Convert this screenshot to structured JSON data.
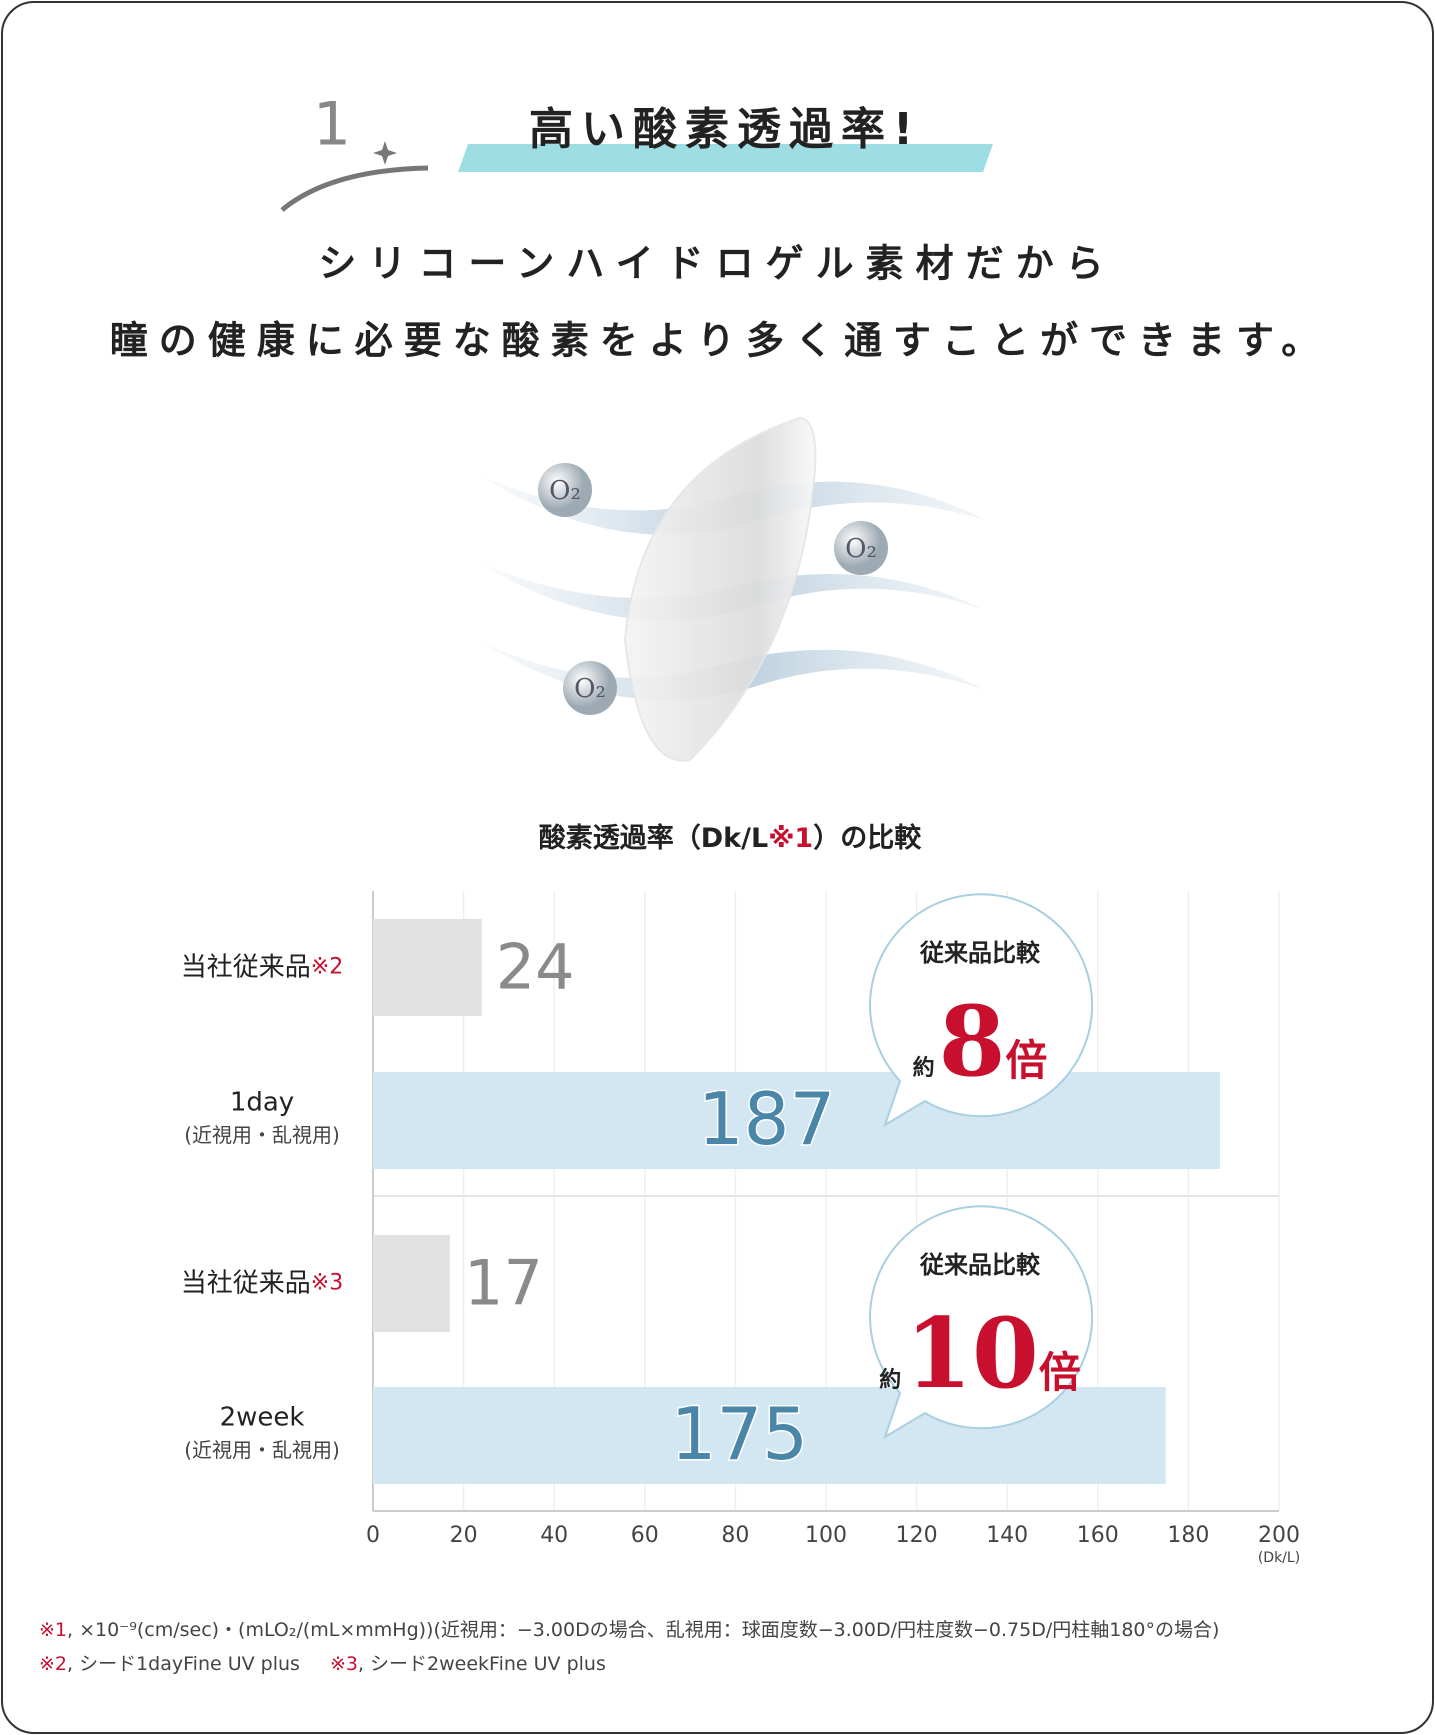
{
  "header": {
    "number": "1",
    "title": "高い酸素透過率!"
  },
  "subtitle": [
    "シリコーンハイドロゲル素材だから",
    "瞳の健康に必要な酸素をより多く通すことができます。"
  ],
  "illustration": {
    "oxygen_label": "O₂"
  },
  "chart_data": {
    "type": "hbar",
    "title": "酸素透過率（Dk/L",
    "title_note": "※1",
    "title_end": "）の比較",
    "categories": [
      "当社従来品",
      "1day",
      "当社従来品",
      "2week"
    ],
    "category_notes": [
      "※2",
      null,
      "※3",
      null
    ],
    "category_sublabels": [
      null,
      "(近視用・乱視用)",
      null,
      "(近視用・乱視用)"
    ],
    "values": [
      24,
      187,
      17,
      175
    ],
    "colors": [
      "#e2e2e2",
      "#d3e7f3",
      "#e2e2e2",
      "#d3e7f3"
    ],
    "label_colors": [
      "#8a8a8a",
      "#4a86a8",
      "#8a8a8a",
      "#4a86a8"
    ],
    "xlim": [
      0,
      200
    ],
    "xticks": [
      0,
      20,
      40,
      60,
      80,
      100,
      120,
      140,
      160,
      180,
      200
    ],
    "x_unit": "(Dk/L)",
    "grid": true,
    "annotations": [
      {
        "heading": "従来品比較",
        "prefix": "約",
        "value": "8",
        "suffix": "倍"
      },
      {
        "heading": "従来品比較",
        "prefix": "約",
        "value": "10",
        "suffix": "倍"
      }
    ]
  },
  "footnotes": [
    {
      "mark": "※1",
      "text": ", ×10⁻⁹(cm/sec)・(mLO₂/(mL×mmHg))(近視用：−3.00Dの場合、乱視用：球面度数−3.00D/円柱度数−0.75D/円柱軸180°の場合)"
    },
    {
      "mark": "※2",
      "text": ", シード1dayFine UV plus"
    },
    {
      "mark": "※3",
      "text": ", シード2weekFine UV plus"
    }
  ]
}
